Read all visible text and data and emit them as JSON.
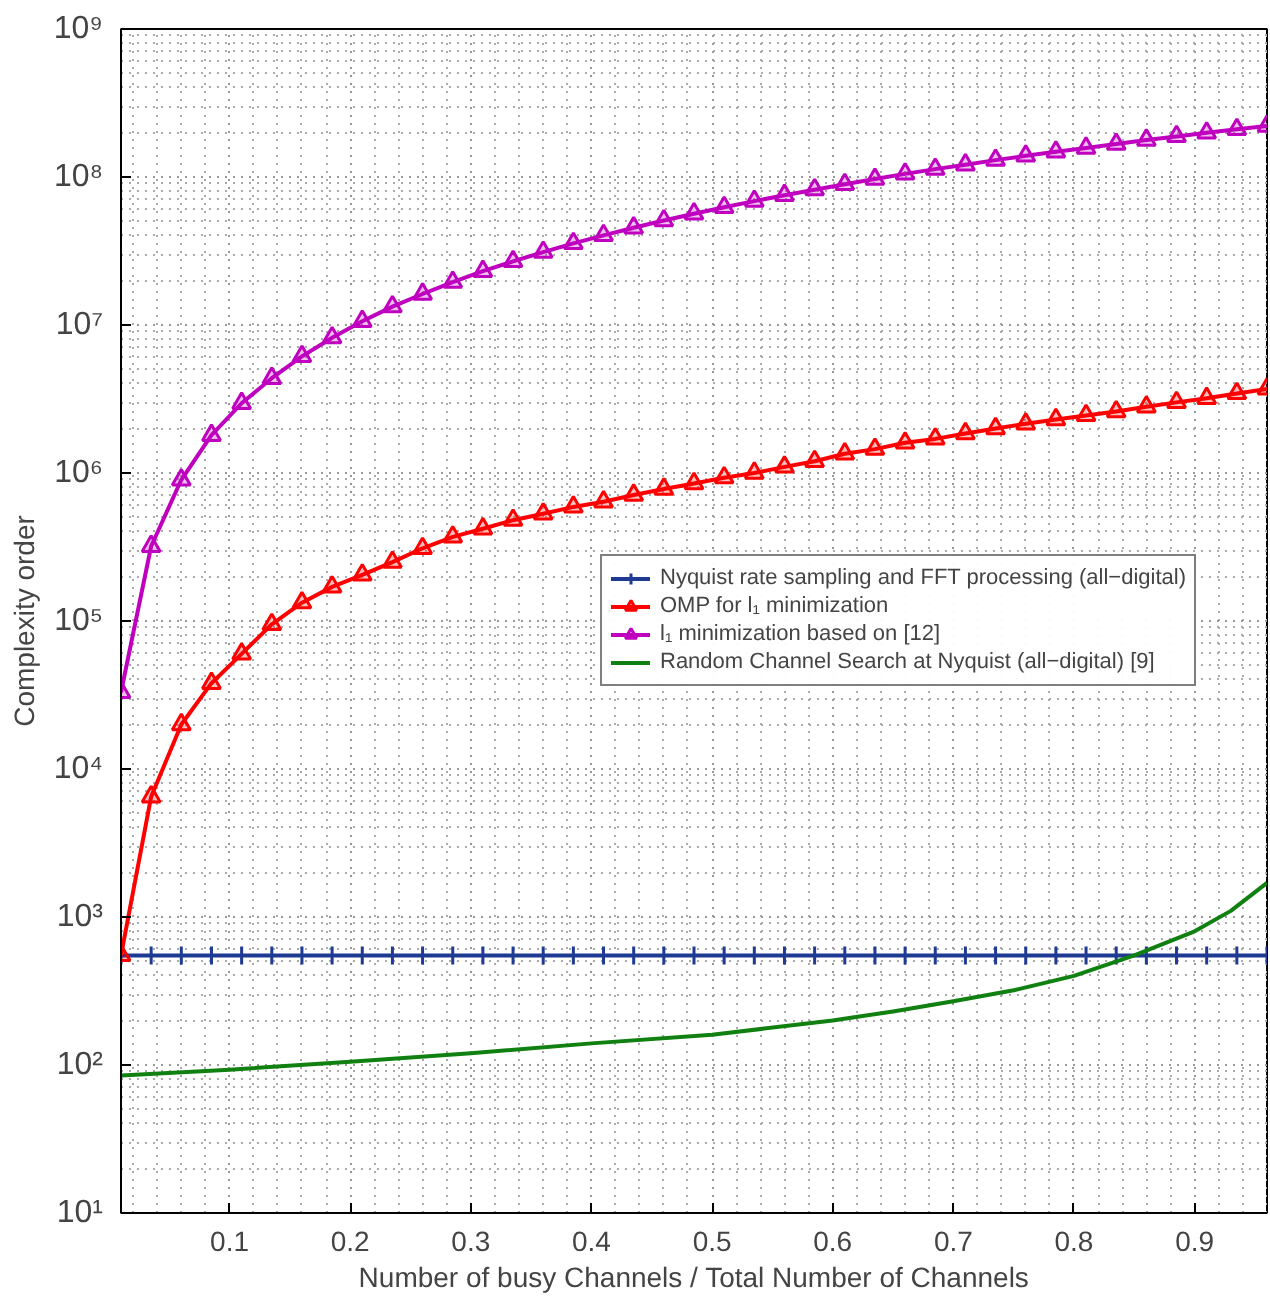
{
  "chart_data": {
    "type": "line",
    "xlabel": "Number of busy Channels / Total Number of Channels",
    "ylabel": "Complexity order",
    "log": "y",
    "grid": true,
    "legend": "right",
    "line_style": "solid",
    "xlim": [
      0.01,
      0.96
    ],
    "xticks": [
      0.1,
      0.2,
      0.3,
      0.4,
      0.5,
      0.6,
      0.7,
      0.8,
      0.9
    ],
    "ylim": [
      10,
      1000000000
    ],
    "yticks": [
      {
        "value": 10,
        "label": "10¹"
      },
      {
        "value": 100,
        "label": "10²"
      },
      {
        "value": 1000,
        "label": "10³"
      },
      {
        "value": 10000,
        "label": "10⁴"
      },
      {
        "value": 100000,
        "label": "10⁵"
      },
      {
        "value": 1000000,
        "label": "10⁶"
      },
      {
        "value": 10000000,
        "label": "10⁷"
      },
      {
        "value": 100000000,
        "label": "10⁸"
      },
      {
        "value": 1000000000,
        "label": "10⁹"
      }
    ],
    "x": [
      0.01,
      0.035,
      0.06,
      0.085,
      0.11,
      0.135,
      0.16,
      0.185,
      0.21,
      0.235,
      0.26,
      0.285,
      0.31,
      0.335,
      0.36,
      0.385,
      0.41,
      0.435,
      0.46,
      0.485,
      0.51,
      0.535,
      0.56,
      0.585,
      0.61,
      0.635,
      0.66,
      0.685,
      0.71,
      0.735,
      0.76,
      0.785,
      0.81,
      0.835,
      0.86,
      0.885,
      0.91,
      0.935,
      0.96
    ],
    "series": [
      {
        "name": "Nyquist rate sampling and FFT processing (all−digital)",
        "color": "#1f3a93",
        "marker": "cross",
        "values": [
          550,
          550,
          550,
          550,
          550,
          550,
          550,
          550,
          550,
          550,
          550,
          550,
          550,
          550,
          550,
          550,
          550,
          550,
          550,
          550,
          550,
          550,
          550,
          550,
          550,
          550,
          550,
          550,
          550,
          550,
          550,
          550,
          550,
          550,
          550,
          550,
          550,
          550,
          550
        ]
      },
      {
        "name": "OMP for l₁ minimization",
        "color": "#ff0000",
        "marker": "triangle",
        "values": [
          550,
          6500,
          20000,
          38000,
          60000,
          95000,
          133000,
          170000,
          205000,
          250000,
          310000,
          370000,
          420000,
          480000,
          530000,
          590000,
          640000,
          710000,
          780000,
          850000,
          930000,
          1000000,
          1100000,
          1200000,
          1350000,
          1450000,
          1600000,
          1700000,
          1850000,
          2000000,
          2150000,
          2300000,
          2450000,
          2600000,
          2800000,
          3000000,
          3200000,
          3450000,
          3700000
        ]
      },
      {
        "name": "l₁ minimization based on [12]",
        "color": "#bf00bf",
        "marker": "triangle",
        "values": [
          33000,
          320000,
          900000,
          1800000,
          2960000,
          4370000,
          6140000,
          8210000,
          10600000,
          13300000,
          16200000,
          19500000,
          23100000,
          26900000,
          31100000,
          35600000,
          40300000,
          45400000,
          50800000,
          56500000,
          62400000,
          68700000,
          75300000,
          82100000,
          89300000,
          96800000,
          105000000,
          113000000,
          121000000,
          130000000,
          139000000,
          148000000,
          157000000,
          167000000,
          178000000,
          188000000,
          199000000,
          210000000,
          221000000
        ]
      },
      {
        "name": "Random Channel Search at Nyquist (all−digital) [9]",
        "color": "#108010",
        "marker": "none",
        "x": [
          0.01,
          0.1,
          0.2,
          0.3,
          0.4,
          0.5,
          0.6,
          0.65,
          0.7,
          0.75,
          0.8,
          0.85,
          0.9,
          0.93,
          0.96
        ],
        "values": [
          85,
          93,
          105,
          120,
          140,
          160,
          200,
          230,
          270,
          320,
          400,
          550,
          800,
          1100,
          1700
        ]
      }
    ]
  }
}
